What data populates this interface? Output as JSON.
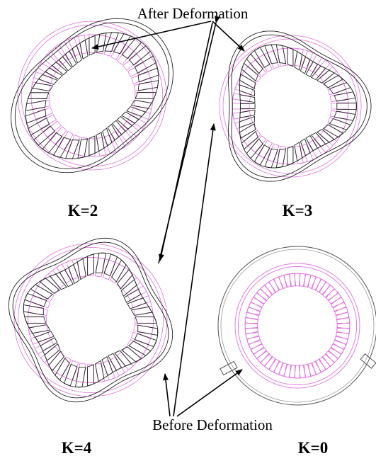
{
  "header": {
    "after": "After Deformation",
    "before": "Before Deformation"
  },
  "panels": [
    {
      "label": "K=2"
    },
    {
      "label": "K=3"
    },
    {
      "label": "K=4"
    },
    {
      "label": "K=0"
    }
  ]
}
